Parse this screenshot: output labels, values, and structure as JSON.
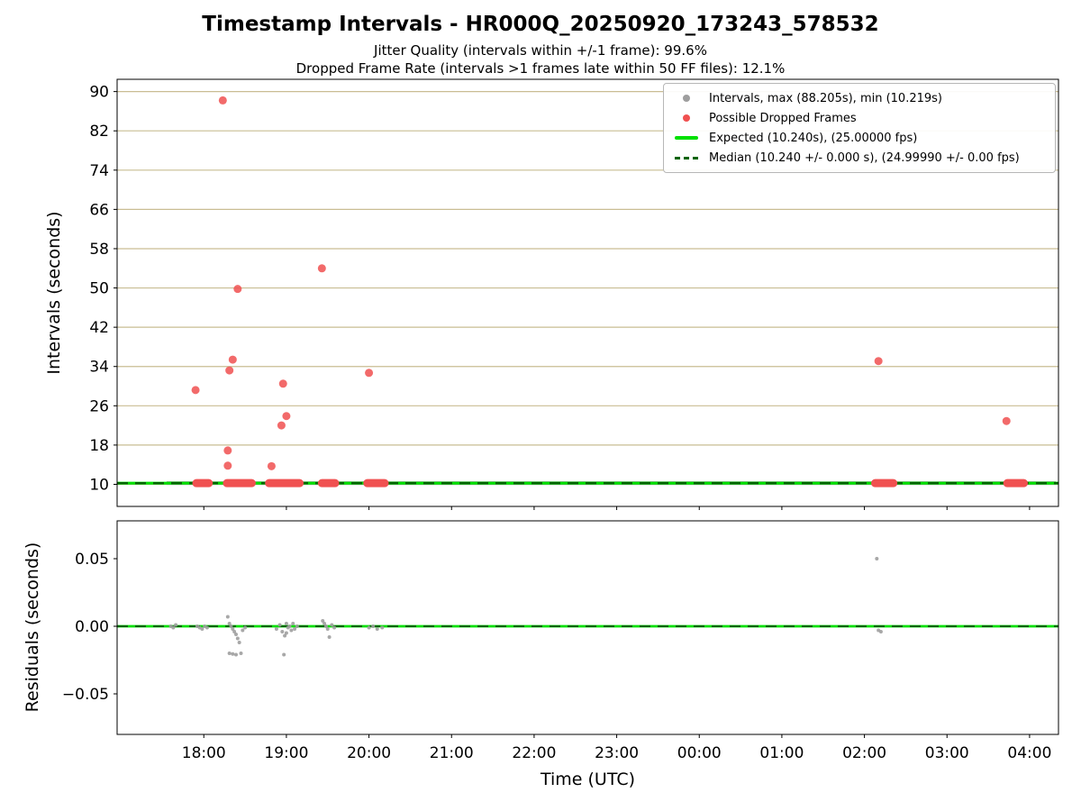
{
  "title": "Timestamp Intervals - HR000Q_20250920_173243_578532",
  "subtitle1": "Jitter Quality (intervals within +/-1 frame): 99.6%",
  "subtitle2": "Dropped Frame Rate (intervals >1 frames late within 50 FF files): 12.1%",
  "colors": {
    "expected": "#00e000",
    "median": "#006400",
    "dropped": "#f05050",
    "intervals": "#9e9e9e",
    "grid": "#c9bd93",
    "spine": "#000000"
  },
  "chart_data": [
    {
      "type": "scatter",
      "ylabel": "Intervals (seconds)",
      "xlim": [
        16.95,
        28.35
      ],
      "ylim": [
        5.5,
        92.5
      ],
      "yticks": [
        10,
        18,
        26,
        34,
        42,
        50,
        58,
        66,
        74,
        82,
        90
      ],
      "grid": "horizontal",
      "expected": 10.24,
      "median": 10.24,
      "stats": {
        "max_s": 88.205,
        "min_s": 10.219,
        "expected_s": 10.24,
        "expected_fps": 25.0,
        "median_s": 10.24,
        "median_fps": 24.9999
      },
      "intervals_baseline": {
        "x_start": 17.55,
        "x_end": 28.32,
        "y": 10.24
      },
      "dropped_segments": [
        [
          17.91,
          18.06
        ],
        [
          18.28,
          18.58
        ],
        [
          18.79,
          19.16
        ],
        [
          19.43,
          19.59
        ],
        [
          19.98,
          20.19
        ],
        [
          26.13,
          26.35
        ],
        [
          27.73,
          27.93
        ]
      ],
      "dropped_points": [
        [
          17.9,
          29.2
        ],
        [
          18.23,
          88.2
        ],
        [
          18.29,
          16.9
        ],
        [
          18.29,
          13.8
        ],
        [
          18.31,
          33.2
        ],
        [
          18.35,
          35.4
        ],
        [
          18.41,
          49.8
        ],
        [
          18.82,
          13.7
        ],
        [
          18.94,
          22.0
        ],
        [
          18.96,
          30.5
        ],
        [
          19.0,
          23.9
        ],
        [
          19.43,
          54.0
        ],
        [
          20.0,
          32.7
        ],
        [
          26.17,
          35.1
        ],
        [
          27.72,
          22.9
        ]
      ],
      "legend": [
        {
          "marker": "dot",
          "series": "intervals",
          "label": "Intervals, max (88.205s), min (10.219s)"
        },
        {
          "marker": "dot",
          "series": "dropped",
          "label": "Possible Dropped Frames"
        },
        {
          "marker": "line",
          "series": "expected",
          "label": "Expected (10.240s), (25.00000 fps)"
        },
        {
          "marker": "dashline",
          "series": "median",
          "label": "Median (10.240 +/- 0.000 s), (24.99990 +/- 0.00 fps)"
        }
      ]
    },
    {
      "type": "scatter",
      "ylabel": "Residuals (seconds)",
      "xlabel": "Time (UTC)",
      "xlim": [
        16.95,
        28.35
      ],
      "ylim": [
        -0.08,
        0.078
      ],
      "yticks": [
        0.05,
        0.0,
        -0.05
      ],
      "xticks": [
        18,
        19,
        20,
        21,
        22,
        23,
        24,
        25,
        26,
        27,
        28
      ],
      "xtick_labels": [
        "18:00",
        "19:00",
        "20:00",
        "21:00",
        "22:00",
        "23:00",
        "00:00",
        "01:00",
        "02:00",
        "03:00",
        "04:00"
      ],
      "expected": 0.0,
      "median": 0.0,
      "points": [
        [
          17.6,
          0.0
        ],
        [
          17.63,
          -0.001
        ],
        [
          17.66,
          0.001
        ],
        [
          17.92,
          0.0
        ],
        [
          17.95,
          -0.001
        ],
        [
          17.98,
          -0.002
        ],
        [
          18.01,
          0.0
        ],
        [
          18.04,
          -0.001
        ],
        [
          18.29,
          0.007
        ],
        [
          18.31,
          0.002
        ],
        [
          18.33,
          0.0
        ],
        [
          18.35,
          -0.002
        ],
        [
          18.37,
          -0.004
        ],
        [
          18.39,
          -0.006
        ],
        [
          18.41,
          -0.009
        ],
        [
          18.43,
          -0.012
        ],
        [
          18.31,
          -0.02
        ],
        [
          18.35,
          -0.0205
        ],
        [
          18.39,
          -0.021
        ],
        [
          18.45,
          -0.02
        ],
        [
          18.47,
          -0.003
        ],
        [
          18.5,
          -0.001
        ],
        [
          18.88,
          -0.002
        ],
        [
          18.92,
          0.001
        ],
        [
          18.95,
          -0.004
        ],
        [
          18.98,
          -0.007
        ],
        [
          19.0,
          0.002
        ],
        [
          19.02,
          -0.001
        ],
        [
          19.04,
          0.0
        ],
        [
          19.06,
          -0.003
        ],
        [
          19.08,
          0.002
        ],
        [
          19.1,
          -0.002
        ],
        [
          19.13,
          0.0
        ],
        [
          18.97,
          -0.021
        ],
        [
          19.0,
          -0.005
        ],
        [
          19.44,
          0.004
        ],
        [
          19.46,
          0.002
        ],
        [
          19.48,
          0.0
        ],
        [
          19.5,
          -0.002
        ],
        [
          19.52,
          -0.008
        ],
        [
          19.55,
          0.001
        ],
        [
          19.58,
          -0.001
        ],
        [
          20.0,
          -0.001
        ],
        [
          20.05,
          0.0
        ],
        [
          20.1,
          -0.002
        ],
        [
          20.16,
          -0.001
        ],
        [
          26.15,
          0.05
        ],
        [
          26.17,
          -0.003
        ],
        [
          26.2,
          -0.004
        ]
      ]
    }
  ]
}
